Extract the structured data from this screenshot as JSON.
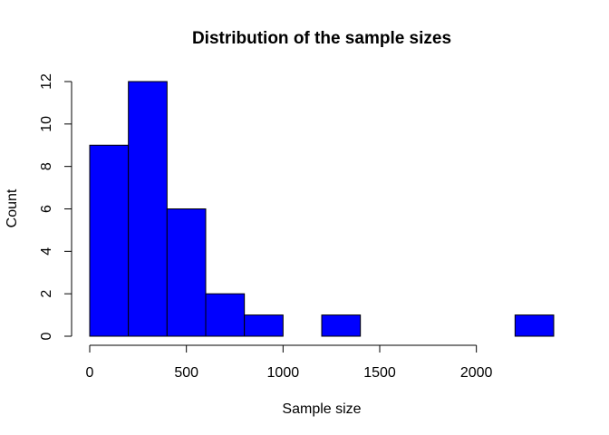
{
  "chart_data": {
    "type": "bar",
    "title": "Distribution of the sample sizes",
    "xlabel": "Sample size",
    "ylabel": "Count",
    "bin_edges": [
      0,
      200,
      400,
      600,
      800,
      1000,
      1200,
      1400,
      1600,
      1800,
      2000,
      2200,
      2400
    ],
    "values": [
      9,
      12,
      6,
      2,
      1,
      0,
      1,
      0,
      0,
      0,
      0,
      1
    ],
    "xlim": [
      0,
      2400
    ],
    "ylim": [
      0,
      12
    ],
    "x_ticks": [
      0,
      500,
      1000,
      1500,
      2000
    ],
    "y_ticks": [
      0,
      2,
      4,
      6,
      8,
      10,
      12
    ],
    "bar_color": "#0000ff",
    "grid": false,
    "legend": "none"
  }
}
